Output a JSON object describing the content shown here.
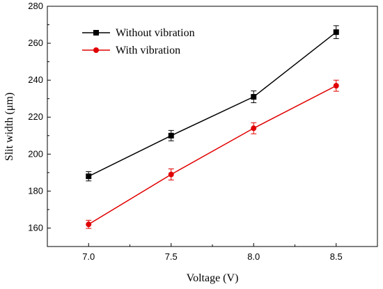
{
  "chart_data": {
    "type": "line",
    "x": [
      7.0,
      7.5,
      8.0,
      8.5
    ],
    "x_tick_labels": [
      "7.0",
      "7.5",
      "8.0",
      "8.5"
    ],
    "y_ticks": [
      160,
      180,
      200,
      220,
      240,
      260,
      280
    ],
    "xlim": [
      6.75,
      8.75
    ],
    "ylim": [
      150,
      280
    ],
    "xlabel": "Voltage (V)",
    "ylabel": "Slit width (μm)",
    "legend_position": "top-left",
    "grid": false,
    "series": [
      {
        "name": "Without vibration",
        "color": "#000000",
        "marker": "square",
        "values": [
          188,
          210,
          231,
          266
        ],
        "errors": [
          2.5,
          2.8,
          3.2,
          3.5
        ]
      },
      {
        "name": "With vibration",
        "color": "#e00000",
        "marker": "circle",
        "values": [
          162,
          189,
          214,
          237
        ],
        "errors": [
          2.2,
          3.0,
          3.0,
          3.0
        ]
      }
    ]
  }
}
